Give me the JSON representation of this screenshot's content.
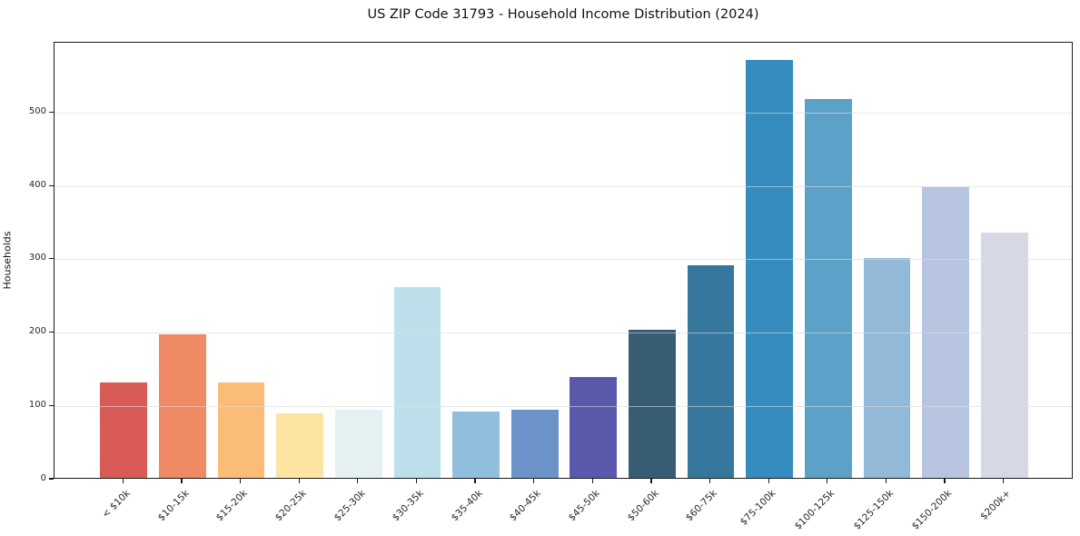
{
  "chart_data": {
    "type": "bar",
    "title": "US ZIP Code 31793 - Household Income Distribution (2024)",
    "xlabel": "",
    "ylabel": "Households",
    "categories": [
      "< $10k",
      "$10-15k",
      "$15-20k",
      "$20-25k",
      "$25-30k",
      "$30-35k",
      "$35-40k",
      "$40-45k",
      "$45-50k",
      "$50-60k",
      "$60-75k",
      "$75-100k",
      "$100-125k",
      "$125-150k",
      "$150-200k",
      "$200k+"
    ],
    "values": [
      130,
      196,
      130,
      88,
      93,
      260,
      91,
      93,
      137,
      202,
      290,
      570,
      517,
      300,
      396,
      335
    ],
    "bar_colors": [
      "#d85c55",
      "#f08a64",
      "#fbbc77",
      "#fde5a1",
      "#e5f0f2",
      "#bcdfeb",
      "#92bedd",
      "#6b93c9",
      "#5a59ab",
      "#365d73",
      "#35779d",
      "#368cbf",
      "#5ca2c8",
      "#93b9d9",
      "#b8c5e0",
      "#d7d8e6"
    ],
    "yticks": [
      0,
      100,
      200,
      300,
      400,
      500
    ],
    "ylim": [
      0,
      596
    ],
    "grid": "horizontal, light gray",
    "legend": "none"
  }
}
